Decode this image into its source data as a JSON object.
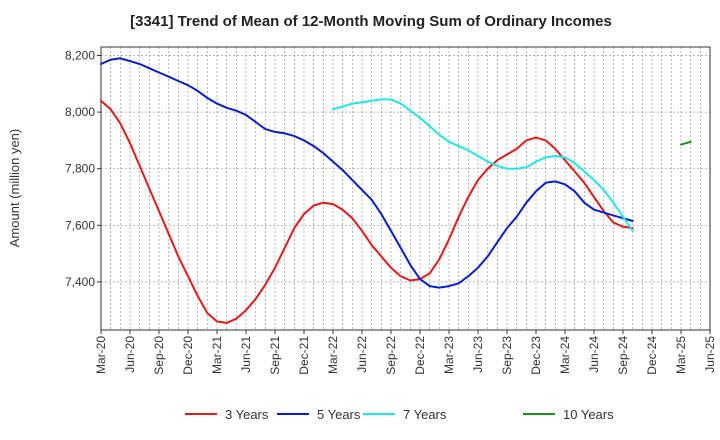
{
  "chart_data": {
    "type": "line",
    "title": "[3341]  Trend of Mean of 12-Month Moving Sum of Ordinary Incomes",
    "xlabel": "",
    "ylabel": "Amount (million yen)",
    "ylim": [
      7230,
      8230
    ],
    "y_ticks": [
      7400,
      7600,
      7800,
      8000,
      8200
    ],
    "y_tick_labels": [
      "7,400",
      "7,600",
      "7,800",
      "8,000",
      "8,200"
    ],
    "x_tick_labels": [
      "Mar-20",
      "Jun-20",
      "Sep-20",
      "Dec-20",
      "Mar-21",
      "Jun-21",
      "Sep-21",
      "Dec-21",
      "Mar-22",
      "Jun-22",
      "Sep-22",
      "Dec-22",
      "Mar-23",
      "Jun-23",
      "Sep-23",
      "Dec-23",
      "Mar-24",
      "Jun-24",
      "Sep-24",
      "Dec-24",
      "Mar-25",
      "Jun-25"
    ],
    "x_start_month_index": 0,
    "x_total_months": 63,
    "grid": true,
    "legend_position": "bottom",
    "series": [
      {
        "name": "3 Years",
        "color": "#e31a1c",
        "start": 0,
        "values": [
          8040,
          8010,
          7960,
          7890,
          7810,
          7730,
          7650,
          7570,
          7490,
          7420,
          7350,
          7290,
          7260,
          7255,
          7270,
          7300,
          7340,
          7390,
          7450,
          7520,
          7590,
          7640,
          7670,
          7680,
          7675,
          7655,
          7625,
          7580,
          7530,
          7490,
          7450,
          7420,
          7405,
          7410,
          7430,
          7480,
          7550,
          7630,
          7700,
          7760,
          7800,
          7830,
          7850,
          7870,
          7900,
          7910,
          7900,
          7870,
          7830,
          7790,
          7750,
          7700,
          7650,
          7610,
          7595,
          7590
        ]
      },
      {
        "name": "5 Years",
        "color": "#0a1ec8",
        "start": 0,
        "values": [
          8170,
          8185,
          8190,
          8180,
          8170,
          8155,
          8140,
          8125,
          8110,
          8095,
          8075,
          8050,
          8030,
          8015,
          8005,
          7990,
          7965,
          7940,
          7930,
          7925,
          7915,
          7900,
          7880,
          7855,
          7825,
          7795,
          7760,
          7725,
          7690,
          7640,
          7580,
          7520,
          7460,
          7410,
          7385,
          7380,
          7385,
          7395,
          7420,
          7450,
          7490,
          7540,
          7590,
          7630,
          7680,
          7720,
          7750,
          7755,
          7745,
          7720,
          7680,
          7655,
          7645,
          7635,
          7625,
          7615
        ]
      },
      {
        "name": "7 Years",
        "color": "#22e6e6",
        "start": 24,
        "values": [
          8010,
          8020,
          8030,
          8035,
          8040,
          8045,
          8045,
          8030,
          8005,
          7980,
          7950,
          7920,
          7895,
          7880,
          7865,
          7845,
          7825,
          7810,
          7800,
          7800,
          7805,
          7825,
          7840,
          7845,
          7840,
          7820,
          7790,
          7760,
          7725,
          7680,
          7630,
          7580
        ]
      },
      {
        "name": "10 Years",
        "color": "#1e8c1e",
        "start": 60,
        "values": [
          7885,
          7895
        ]
      }
    ]
  }
}
